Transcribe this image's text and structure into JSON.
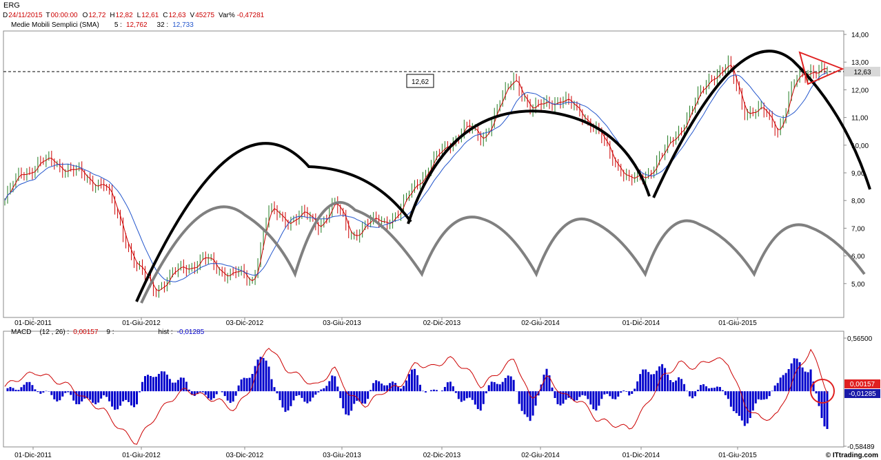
{
  "header": {
    "symbol": "ERG",
    "quote": {
      "d_label": "D",
      "date": "24/11/2015",
      "t_label": "T",
      "time": "00:00:00",
      "o_label": "O",
      "open": "12,72",
      "h_label": "H",
      "high": "12,82",
      "l_label": "L",
      "low": "12,61",
      "c_label": "C",
      "close": "12,63",
      "v_label": "V",
      "volume": "45275",
      "var_label": "Var%",
      "var": "-0,47281"
    },
    "sma": {
      "label": "Medie Mobili Semplici (SMA)",
      "p1": "5 :",
      "v1": "12,762",
      "p2": "32 :",
      "v2": "12,733"
    }
  },
  "macd_header": {
    "label": "MACD",
    "params": "(12 , 26) :",
    "value": "0,00157",
    "signal": "9 :",
    "hist_label": "hist :",
    "hist_value": "-0,01285"
  },
  "colors": {
    "up": "#1f7a1f",
    "down": "#cc0000",
    "sma_fast": "#cc0000",
    "sma_slow": "#2255cc",
    "macd_line": "#cc0000",
    "hist": "#0000cc",
    "arc_black": "#000000",
    "arc_gray": "#808080",
    "triangle": "#e02020"
  },
  "watermark": "© ITtrading.com",
  "chart_data": [
    {
      "type": "line",
      "title": "ERG",
      "series": [
        {
          "x": [
            "2011-09",
            "2011-10",
            "2011-11",
            "2011-12",
            "2012-01",
            "2012-02",
            "2012-03",
            "2012-04",
            "2012-05",
            "2012-06",
            "2012-07",
            "2012-08",
            "2012-09",
            "2012-10",
            "2012-11",
            "2012-12",
            "2013-01",
            "2013-02",
            "2013-03",
            "2013-04",
            "2013-05",
            "2013-06",
            "2013-07",
            "2013-08",
            "2013-09",
            "2013-10",
            "2013-11",
            "2013-12",
            "2014-01",
            "2014-02",
            "2014-03",
            "2014-04",
            "2014-05",
            "2014-06",
            "2014-07",
            "2014-08",
            "2014-09",
            "2014-10",
            "2014-11",
            "2014-12",
            "2015-01",
            "2015-02",
            "2015-03",
            "2015-04",
            "2015-05",
            "2015-06",
            "2015-07",
            "2015-08",
            "2015-09",
            "2015-10",
            "2015-11"
          ],
          "values": [
            8.0,
            9.0,
            9.3,
            9.4,
            9.1,
            8.8,
            8.6,
            7.2,
            5.6,
            4.8,
            5.2,
            5.6,
            5.9,
            5.5,
            5.4,
            5.0,
            7.6,
            7.3,
            7.5,
            7.1,
            7.9,
            6.8,
            7.1,
            7.3,
            7.5,
            8.7,
            9.3,
            10.1,
            10.6,
            10.3,
            11.3,
            12.6,
            11.1,
            11.7,
            11.5,
            11.3,
            10.4,
            9.6,
            8.6,
            9.0,
            9.6,
            10.6,
            11.5,
            12.6,
            12.8,
            11.3,
            11.2,
            10.6,
            12.2,
            12.8,
            12.63
          ]
        }
      ],
      "yticks": [
        "14,00",
        "13,00",
        "12,00",
        "11,00",
        "10,00",
        "9,00",
        "8,00",
        "7,00",
        "6,00",
        "5,00"
      ],
      "ylim": [
        4.2,
        14.0
      ],
      "xticks": [
        "01-Dic-2011",
        "01-Giu-2012",
        "03-Dic-2012",
        "03-Giu-2013",
        "02-Dic-2013",
        "02-Giu-2014",
        "01-Dic-2014",
        "01-Giu-2015"
      ],
      "last_value_label": "12,63",
      "annotation_label": "12,62",
      "grid": false
    },
    {
      "type": "line",
      "title": "MACD",
      "series": [
        {
          "x": [
            "2011-09",
            "2011-10",
            "2011-11",
            "2011-12",
            "2012-01",
            "2012-02",
            "2012-03",
            "2012-04",
            "2012-05",
            "2012-06",
            "2012-07",
            "2012-08",
            "2012-09",
            "2012-10",
            "2012-11",
            "2012-12",
            "2013-01",
            "2013-02",
            "2013-03",
            "2013-04",
            "2013-05",
            "2013-06",
            "2013-07",
            "2013-08",
            "2013-09",
            "2013-10",
            "2013-11",
            "2013-12",
            "2014-01",
            "2014-02",
            "2014-03",
            "2014-04",
            "2014-05",
            "2014-06",
            "2014-07",
            "2014-08",
            "2014-09",
            "2014-10",
            "2014-11",
            "2014-12",
            "2015-01",
            "2015-02",
            "2015-03",
            "2015-04",
            "2015-05",
            "2015-06",
            "2015-07",
            "2015-08",
            "2015-09",
            "2015-10",
            "2015-11"
          ],
          "values": [
            0.05,
            0.15,
            0.2,
            0.12,
            0.05,
            -0.1,
            -0.2,
            -0.4,
            -0.55,
            -0.3,
            -0.1,
            0.02,
            -0.05,
            -0.1,
            -0.2,
            0.05,
            0.5,
            0.25,
            0.15,
            0.05,
            0.25,
            -0.05,
            -0.15,
            0.0,
            0.05,
            0.3,
            0.25,
            0.35,
            0.25,
            0.05,
            0.2,
            0.35,
            -0.1,
            0.15,
            -0.05,
            -0.1,
            -0.3,
            -0.35,
            -0.4,
            -0.15,
            0.15,
            0.3,
            0.25,
            0.35,
            0.3,
            -0.15,
            -0.3,
            -0.25,
            0.15,
            0.45,
            0.00157
          ]
        }
      ],
      "yticks": [
        "0,56500",
        "-0,58489"
      ],
      "ylim": [
        -0.58489,
        0.565
      ],
      "xticks": [
        "01-Dic-2011",
        "01-Giu-2012",
        "03-Dic-2012",
        "03-Giu-2013",
        "02-Dic-2013",
        "02-Giu-2014",
        "01-Dic-2014",
        "01-Giu-2015"
      ],
      "last_value_labels": [
        "0,00157",
        "-0,01285"
      ],
      "grid": false
    }
  ]
}
